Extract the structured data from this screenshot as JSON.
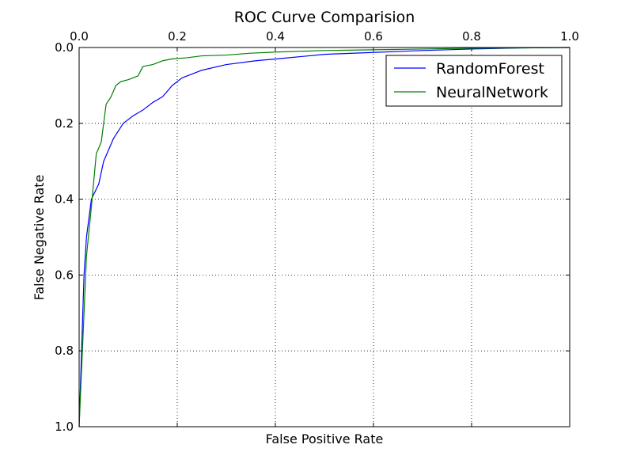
{
  "chart_data": {
    "type": "line",
    "title": "ROC Curve Comparision",
    "xlabel": "False Positive Rate",
    "ylabel": "False Negative Rate",
    "xlim": [
      0,
      1
    ],
    "ylim": [
      0,
      1
    ],
    "y_inverted": true,
    "x_axis_position": "top",
    "grid": true,
    "legend_position": "top-right",
    "x_ticks": [
      "0.0",
      "0.2",
      "0.4",
      "0.6",
      "0.8",
      "1.0"
    ],
    "y_ticks": [
      "0.0",
      "0.2",
      "0.4",
      "0.6",
      "0.8",
      "1.0"
    ],
    "series": [
      {
        "name": "RandomForest",
        "color": "#0000ff",
        "points": [
          [
            0.0,
            1.0
          ],
          [
            0.005,
            0.8
          ],
          [
            0.01,
            0.6
          ],
          [
            0.015,
            0.5
          ],
          [
            0.025,
            0.4
          ],
          [
            0.04,
            0.36
          ],
          [
            0.05,
            0.3
          ],
          [
            0.07,
            0.24
          ],
          [
            0.09,
            0.2
          ],
          [
            0.11,
            0.18
          ],
          [
            0.13,
            0.165
          ],
          [
            0.15,
            0.145
          ],
          [
            0.17,
            0.13
          ],
          [
            0.19,
            0.1
          ],
          [
            0.21,
            0.08
          ],
          [
            0.23,
            0.07
          ],
          [
            0.25,
            0.06
          ],
          [
            0.3,
            0.045
          ],
          [
            0.36,
            0.035
          ],
          [
            0.42,
            0.028
          ],
          [
            0.5,
            0.018
          ],
          [
            0.6,
            0.013
          ],
          [
            0.7,
            0.008
          ],
          [
            0.8,
            0.004
          ],
          [
            0.9,
            0.001
          ],
          [
            1.0,
            0.0
          ]
        ]
      },
      {
        "name": "NeuralNetwork",
        "color": "#008000",
        "points": [
          [
            0.0,
            1.0
          ],
          [
            0.005,
            0.85
          ],
          [
            0.01,
            0.7
          ],
          [
            0.015,
            0.55
          ],
          [
            0.025,
            0.42
          ],
          [
            0.03,
            0.35
          ],
          [
            0.035,
            0.28
          ],
          [
            0.045,
            0.25
          ],
          [
            0.05,
            0.2
          ],
          [
            0.055,
            0.15
          ],
          [
            0.065,
            0.13
          ],
          [
            0.075,
            0.1
          ],
          [
            0.085,
            0.09
          ],
          [
            0.1,
            0.085
          ],
          [
            0.12,
            0.075
          ],
          [
            0.13,
            0.05
          ],
          [
            0.15,
            0.045
          ],
          [
            0.17,
            0.035
          ],
          [
            0.19,
            0.03
          ],
          [
            0.22,
            0.027
          ],
          [
            0.25,
            0.022
          ],
          [
            0.3,
            0.02
          ],
          [
            0.35,
            0.015
          ],
          [
            0.4,
            0.012
          ],
          [
            0.5,
            0.008
          ],
          [
            0.6,
            0.006
          ],
          [
            0.7,
            0.004
          ],
          [
            0.8,
            0.002
          ],
          [
            0.9,
            0.001
          ],
          [
            1.0,
            0.0
          ]
        ]
      }
    ]
  }
}
